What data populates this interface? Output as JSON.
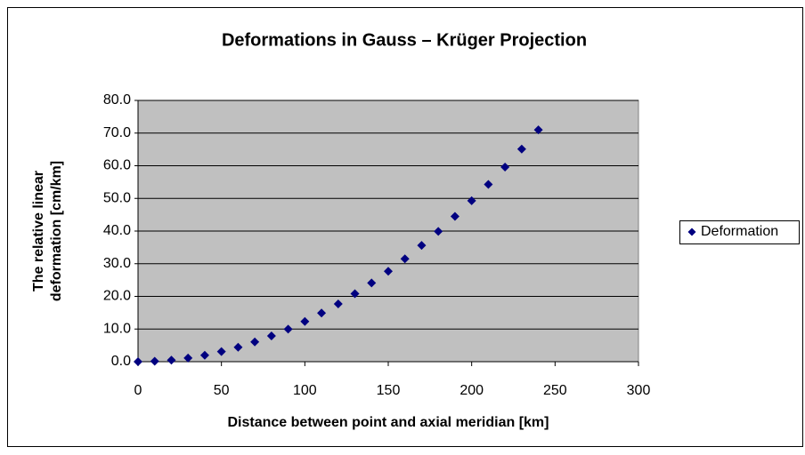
{
  "chart_data": {
    "type": "scatter",
    "title": "Deformations in Gauss – Krüger Projection",
    "xlabel": "Distance between point and axial meridian [km]",
    "ylabel": [
      "The relative linear",
      "deformation [cm/km]"
    ],
    "series": [
      {
        "name": "Deformation",
        "color": "#000080",
        "x": [
          0,
          10,
          20,
          30,
          40,
          50,
          60,
          70,
          80,
          90,
          100,
          110,
          120,
          130,
          140,
          150,
          160,
          170,
          180,
          190,
          200,
          210,
          220,
          230,
          240
        ],
        "values": [
          0,
          0.12,
          0.49,
          1.11,
          1.97,
          3.08,
          4.43,
          6.04,
          7.88,
          9.98,
          12.3,
          14.9,
          17.7,
          20.8,
          24.1,
          27.7,
          31.5,
          35.6,
          39.9,
          44.5,
          49.3,
          54.3,
          59.6,
          65.1,
          71.0
        ]
      }
    ],
    "xlim": [
      0,
      300
    ],
    "xticks": [
      0,
      50,
      100,
      150,
      200,
      250,
      300
    ],
    "ylim": [
      0,
      80
    ],
    "yticks": [
      {
        "value": 0,
        "label": "0.0"
      },
      {
        "value": 10,
        "label": "10.0"
      },
      {
        "value": 20,
        "label": "20.0"
      },
      {
        "value": 30,
        "label": "30.0"
      },
      {
        "value": 40,
        "label": "40.0"
      },
      {
        "value": 50,
        "label": "50.0"
      },
      {
        "value": 60,
        "label": "60.0"
      },
      {
        "value": 70,
        "label": "70.0"
      },
      {
        "value": 80,
        "label": "80.0"
      }
    ],
    "grid": true,
    "legend": "right",
    "plot_background": "#c0c0c0"
  }
}
